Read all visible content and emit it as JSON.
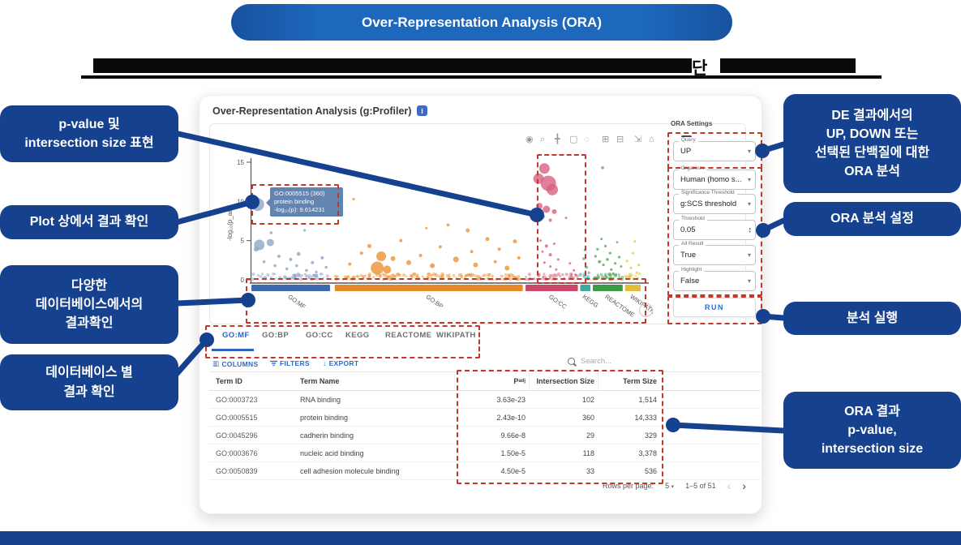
{
  "colors": {
    "navy": "#16418f",
    "banner_blue": "#1d68bd",
    "dashed_red": "#c0392b",
    "tab_blue": "#2e63c4",
    "action_blue": "#3068c8",
    "run_blue": "#2a6ad4",
    "tooltip_bg": "#5b7fae"
  },
  "banner": {
    "title": "Over-Representation Analysis (ORA)"
  },
  "subtitle": {
    "redacted": true,
    "visible_fragment": "단"
  },
  "annotations_left": [
    {
      "lines": [
        "p-value 및",
        "intersection size 표현"
      ]
    },
    {
      "lines": [
        "Plot 상에서 결과 확인"
      ]
    },
    {
      "lines": [
        "다양한",
        "데이터베이스에서의",
        "결과확인"
      ]
    },
    {
      "lines": [
        "데이터베이스 별",
        "결과 확인"
      ]
    }
  ],
  "annotations_right": [
    {
      "lines": [
        "DE 결과에서의",
        "UP, DOWN 또는",
        "선택된 단백질에 대한",
        "ORA 분석"
      ]
    },
    {
      "lines": [
        "ORA 분석 설정"
      ]
    },
    {
      "lines": [
        "분석 실행"
      ]
    },
    {
      "lines": [
        "ORA 결과",
        "p-value,",
        "intersection size"
      ]
    }
  ],
  "app": {
    "title": "Over-Representation Analysis (g:Profiler)",
    "info_icon": "info-icon",
    "plot_toolbar": [
      {
        "name": "camera-icon",
        "glyph": "◉"
      },
      {
        "name": "zoom-icon",
        "glyph": "⌕"
      },
      {
        "name": "pan-icon",
        "glyph": "╋"
      },
      {
        "name": "box-select-icon",
        "glyph": "▢"
      },
      {
        "name": "lasso-icon",
        "glyph": "◌"
      },
      {
        "name": "zoom-in-icon",
        "glyph": "⊞"
      },
      {
        "name": "zoom-out-icon",
        "glyph": "⊟"
      },
      {
        "name": "autoscale-icon",
        "glyph": "⇲"
      },
      {
        "name": "reset-axes-icon",
        "glyph": "⌂"
      },
      {
        "name": "plotly-logo-icon",
        "glyph": "|||"
      }
    ],
    "settings": {
      "panel_title": "ORA Settings",
      "fields": [
        {
          "label": "Query",
          "value": "UP",
          "type": "select"
        },
        {
          "label": "Organism",
          "value": "Human (homo s...",
          "type": "select"
        },
        {
          "label": "Significance Threshold",
          "value": "g:SCS threshold",
          "type": "select"
        },
        {
          "label": "Threshold",
          "value": "0.05",
          "type": "stepper"
        },
        {
          "label": "All Result",
          "value": "True",
          "type": "select"
        },
        {
          "label": "Highlight",
          "value": "False",
          "type": "select"
        }
      ],
      "run_label": "RUN"
    },
    "tabs": {
      "items": [
        "GO:MF",
        "GO:BP",
        "GO:CC",
        "KEGG",
        "REACTOME",
        "WIKIPATH"
      ],
      "active_index": 0
    },
    "table": {
      "actions": [
        {
          "name": "columns-button",
          "label": "COLUMNS"
        },
        {
          "name": "filters-button",
          "label": "FILTERS"
        },
        {
          "name": "export-button",
          "label": "EXPORT"
        }
      ],
      "search_placeholder": "Search...",
      "columns": [
        {
          "label": "Term ID"
        },
        {
          "label": "Term Name"
        },
        {
          "label": "P",
          "sub": "adj"
        },
        {
          "label": "Intersection Size"
        },
        {
          "label": "Term Size"
        }
      ],
      "rows": [
        [
          "GO:0003723",
          "RNA binding",
          "3.63e-23",
          "102",
          "1,514"
        ],
        [
          "GO:0005515",
          "protein binding",
          "2.43e-10",
          "360",
          "14,333"
        ],
        [
          "GO:0045296",
          "cadherin binding",
          "9.66e-8",
          "29",
          "329"
        ],
        [
          "GO:0003676",
          "nucleic acid binding",
          "1.50e-5",
          "118",
          "3,378"
        ],
        [
          "GO:0050839",
          "cell adhesion molecule binding",
          "4.50e-5",
          "33",
          "536"
        ]
      ]
    },
    "pagination": {
      "rows_per_page_label": "Rows per page:",
      "rows_per_page": "5",
      "range": "1–5 of 51",
      "prev": "‹",
      "next": "›"
    }
  },
  "chart_data": {
    "type": "scatter",
    "subtype": "manhattan-enrichment",
    "ylabel": "-log₁₀(p_adj)",
    "yticks": [
      0,
      5,
      10,
      15
    ],
    "ylim": [
      0,
      16
    ],
    "grid": false,
    "xlabel_rotation": 35,
    "categories": [
      {
        "name": "GO:MF",
        "point_color": "#8ea6c6",
        "bar_color": "#3c6aad",
        "band": [
          0.0,
          0.2
        ]
      },
      {
        "name": "GO:BP",
        "point_color": "#ec9433",
        "bar_color": "#e68a28",
        "band": [
          0.212,
          0.69
        ]
      },
      {
        "name": "GO:CC",
        "point_color": "#d8627f",
        "bar_color": "#c74868",
        "band": [
          0.697,
          0.83
        ]
      },
      {
        "name": "KEGG",
        "point_color": "#5bb3ad",
        "bar_color": "#3fa8a2",
        "band": [
          0.836,
          0.862
        ]
      },
      {
        "name": "REACTOME",
        "point_color": "#57a85c",
        "bar_color": "#3c9a46",
        "band": [
          0.868,
          0.944
        ]
      },
      {
        "name": "WIKIPATH",
        "point_color": "#e6c84b",
        "bar_color": "#dfbe38",
        "band": [
          0.95,
          0.99
        ]
      }
    ],
    "points": [
      [
        0.016,
        9.61,
        8,
        0
      ],
      [
        0.02,
        4.45,
        6.5,
        0
      ],
      [
        0.048,
        4.75,
        4.5,
        0
      ],
      [
        0.012,
        3.9,
        3,
        0
      ],
      [
        0.05,
        6.0,
        1.8,
        0
      ],
      [
        0.135,
        6.3,
        1.6,
        0
      ],
      [
        0.07,
        3.0,
        2,
        0
      ],
      [
        0.1,
        2.6,
        2,
        0
      ],
      [
        0.12,
        3.3,
        2.4,
        0
      ],
      [
        0.155,
        2.2,
        2,
        0
      ],
      [
        0.18,
        2.8,
        2,
        0
      ],
      [
        0.06,
        1.8,
        1.8,
        0
      ],
      [
        0.09,
        1.4,
        1.8,
        0
      ],
      [
        0.14,
        1.2,
        1.8,
        0
      ],
      [
        0.19,
        1.6,
        1.8,
        0
      ],
      [
        0.032,
        2.3,
        1.8,
        0
      ],
      [
        0.165,
        1.0,
        1.6,
        0
      ],
      [
        0.115,
        1.8,
        1.8,
        0
      ],
      [
        0.26,
        10.3,
        1.6,
        1
      ],
      [
        0.3,
        4.3,
        2.5,
        1
      ],
      [
        0.32,
        1.5,
        8,
        1
      ],
      [
        0.345,
        1.3,
        5,
        1
      ],
      [
        0.33,
        3.0,
        6,
        1
      ],
      [
        0.36,
        2.7,
        3,
        1
      ],
      [
        0.25,
        2.0,
        2,
        1
      ],
      [
        0.28,
        3.4,
        2,
        1
      ],
      [
        0.4,
        2.2,
        3,
        1
      ],
      [
        0.43,
        3.1,
        2,
        1
      ],
      [
        0.46,
        1.8,
        3,
        1
      ],
      [
        0.5,
        7.0,
        1.8,
        1
      ],
      [
        0.52,
        2.6,
        3.5,
        1
      ],
      [
        0.55,
        6.3,
        2.5,
        1
      ],
      [
        0.57,
        1.9,
        3,
        1
      ],
      [
        0.6,
        5.2,
        2.5,
        1
      ],
      [
        0.62,
        2.3,
        2,
        1
      ],
      [
        0.65,
        1.5,
        3,
        1
      ],
      [
        0.67,
        4.9,
        2.5,
        1
      ],
      [
        0.68,
        2.8,
        2,
        1
      ],
      [
        0.38,
        5.0,
        2,
        1
      ],
      [
        0.48,
        4.2,
        2,
        1
      ],
      [
        0.445,
        6.6,
        1.5,
        1
      ],
      [
        0.56,
        3.6,
        2,
        1
      ],
      [
        0.63,
        3.9,
        2,
        1
      ],
      [
        0.745,
        14.2,
        6.5,
        2
      ],
      [
        0.73,
        12.9,
        6.5,
        2
      ],
      [
        0.755,
        12.3,
        9.5,
        2
      ],
      [
        0.765,
        11.5,
        7,
        2
      ],
      [
        0.732,
        9.4,
        4,
        2
      ],
      [
        0.75,
        9.0,
        4.5,
        2
      ],
      [
        0.77,
        8.7,
        3,
        2
      ],
      [
        0.74,
        8.1,
        3,
        2
      ],
      [
        0.76,
        7.6,
        2,
        2
      ],
      [
        0.8,
        7.9,
        1.5,
        2
      ],
      [
        0.735,
        5.0,
        1.5,
        2
      ],
      [
        0.75,
        4.3,
        2,
        2
      ],
      [
        0.77,
        4.6,
        1.5,
        2
      ],
      [
        0.74,
        3.6,
        1.5,
        2
      ],
      [
        0.76,
        3.2,
        2,
        2
      ],
      [
        0.78,
        2.6,
        1.5,
        2
      ],
      [
        0.745,
        2.2,
        1.5,
        2
      ],
      [
        0.76,
        1.7,
        1.5,
        2
      ],
      [
        0.775,
        1.3,
        1.5,
        2
      ],
      [
        0.81,
        2.1,
        1.5,
        2
      ],
      [
        0.82,
        1.2,
        1.5,
        2
      ],
      [
        0.845,
        2.7,
        1.8,
        3
      ],
      [
        0.852,
        1.6,
        1.8,
        3
      ],
      [
        0.858,
        0.9,
        1.6,
        3
      ],
      [
        0.848,
        3.8,
        1.6,
        3
      ],
      [
        0.893,
        14.3,
        1.8,
        4
      ],
      [
        0.875,
        3.0,
        1.6,
        4
      ],
      [
        0.885,
        2.3,
        2,
        4
      ],
      [
        0.895,
        1.9,
        1.6,
        4
      ],
      [
        0.905,
        2.6,
        1.8,
        4
      ],
      [
        0.915,
        1.3,
        1.6,
        4
      ],
      [
        0.925,
        2.1,
        1.6,
        4
      ],
      [
        0.88,
        3.9,
        1.6,
        4
      ],
      [
        0.9,
        4.3,
        1.6,
        4
      ],
      [
        0.912,
        3.4,
        1.6,
        4
      ],
      [
        0.935,
        2.9,
        1.6,
        4
      ],
      [
        0.89,
        5.2,
        1.5,
        4
      ],
      [
        0.92,
        0.8,
        1.5,
        4
      ],
      [
        0.93,
        4.8,
        1.4,
        4
      ],
      [
        0.94,
        1.7,
        1.5,
        4
      ],
      [
        0.955,
        2.4,
        1.6,
        5
      ],
      [
        0.965,
        1.5,
        1.6,
        5
      ],
      [
        0.975,
        4.9,
        1.5,
        5
      ],
      [
        0.98,
        0.9,
        1.5,
        5
      ],
      [
        0.985,
        1.9,
        1.6,
        5
      ],
      [
        0.97,
        3.4,
        1.5,
        5
      ]
    ],
    "baseline_noise": {
      "seed": 7,
      "counts": [
        60,
        150,
        45,
        12,
        40,
        14
      ],
      "y_range": [
        0.02,
        0.75
      ],
      "r_range": [
        1.1,
        2.3
      ]
    },
    "highlighted_point": {
      "term_id": "GO:0005515",
      "intersection_size": 360,
      "y": 9.61,
      "x_frac": 0.016
    },
    "tooltip": {
      "lines": [
        "GO:0005515 (360)",
        "protein binding",
        "-log₁₀(p): 9.614231"
      ]
    }
  }
}
